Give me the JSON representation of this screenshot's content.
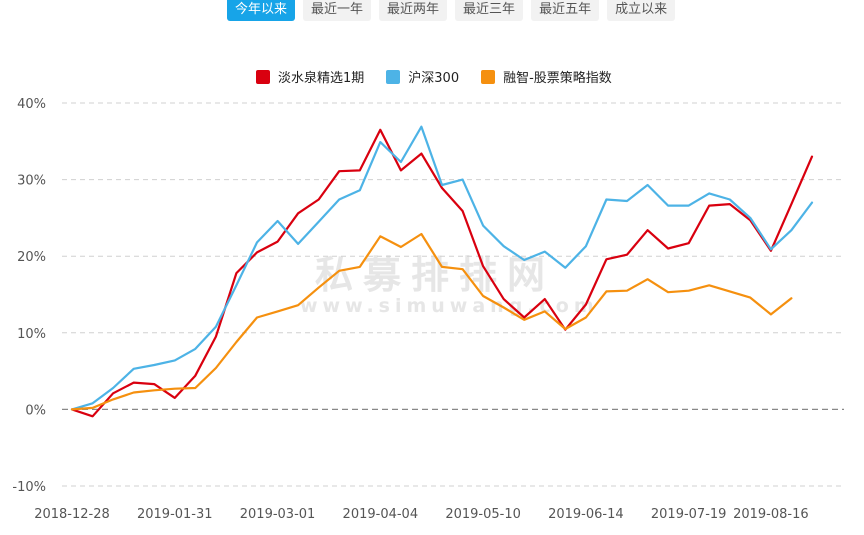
{
  "tabs": [
    {
      "label": "今年以来",
      "active": true
    },
    {
      "label": "最近一年",
      "active": false
    },
    {
      "label": "最近两年",
      "active": false
    },
    {
      "label": "最近三年",
      "active": false
    },
    {
      "label": "最近五年",
      "active": false
    },
    {
      "label": "成立以来",
      "active": false
    }
  ],
  "watermark": {
    "cn": "私募排排网",
    "en": "www.simuwang.com"
  },
  "chart_data": {
    "type": "line",
    "title": "",
    "xlabel": "",
    "ylabel": "",
    "ylim": [
      -10,
      40
    ],
    "y_ticks": [
      40,
      30,
      20,
      10,
      0,
      -10
    ],
    "y_tick_labels": [
      "40%",
      "30%",
      "20%",
      "10%",
      "0%",
      "-10%"
    ],
    "x_tick_labels": [
      "2018-12-28",
      "2019-01-31",
      "2019-03-01",
      "2019-04-04",
      "2019-05-10",
      "2019-06-14",
      "2019-07-19",
      "2019-08-16"
    ],
    "x_tick_index": [
      0,
      5,
      10,
      15,
      20,
      25,
      30,
      34
    ],
    "legend_position": "top-center",
    "grid": true,
    "series": [
      {
        "name": "淡水泉精选1期",
        "color": "#d9000f",
        "values": [
          0,
          -0.9,
          2.1,
          3.5,
          3.3,
          1.5,
          4.4,
          9.5,
          17.8,
          20.5,
          21.9,
          25.6,
          27.4,
          31.1,
          31.2,
          36.5,
          31.2,
          33.4,
          28.9,
          25.9,
          18.7,
          14.4,
          12.0,
          14.4,
          10.4,
          13.7,
          19.6,
          20.2,
          23.4,
          21.0,
          21.7,
          26.6,
          26.8,
          24.7,
          20.7,
          26.8,
          33.0
        ]
      },
      {
        "name": "沪深300",
        "color": "#4db3e6",
        "values": [
          0,
          0.8,
          2.8,
          5.3,
          5.8,
          6.4,
          7.9,
          10.8,
          16.2,
          21.8,
          24.6,
          21.6,
          24.5,
          27.4,
          28.6,
          34.9,
          32.3,
          36.9,
          29.3,
          30.0,
          24.0,
          21.3,
          19.5,
          20.6,
          18.5,
          21.3,
          27.4,
          27.2,
          29.3,
          26.6,
          26.6,
          28.2,
          27.4,
          25.0,
          20.9,
          23.4,
          27.0
        ]
      },
      {
        "name": "融智-股票策略指数",
        "color": "#f5900f",
        "values": [
          0,
          0.2,
          1.3,
          2.2,
          2.5,
          2.7,
          2.8,
          5.4,
          8.8,
          12.0,
          12.8,
          13.6,
          15.9,
          18.1,
          18.6,
          22.6,
          21.2,
          22.9,
          18.6,
          18.3,
          14.8,
          13.3,
          11.7,
          12.8,
          10.5,
          12.0,
          15.4,
          15.5,
          17.0,
          15.3,
          15.5,
          16.2,
          15.4,
          14.6,
          12.4,
          14.5
        ]
      }
    ]
  }
}
